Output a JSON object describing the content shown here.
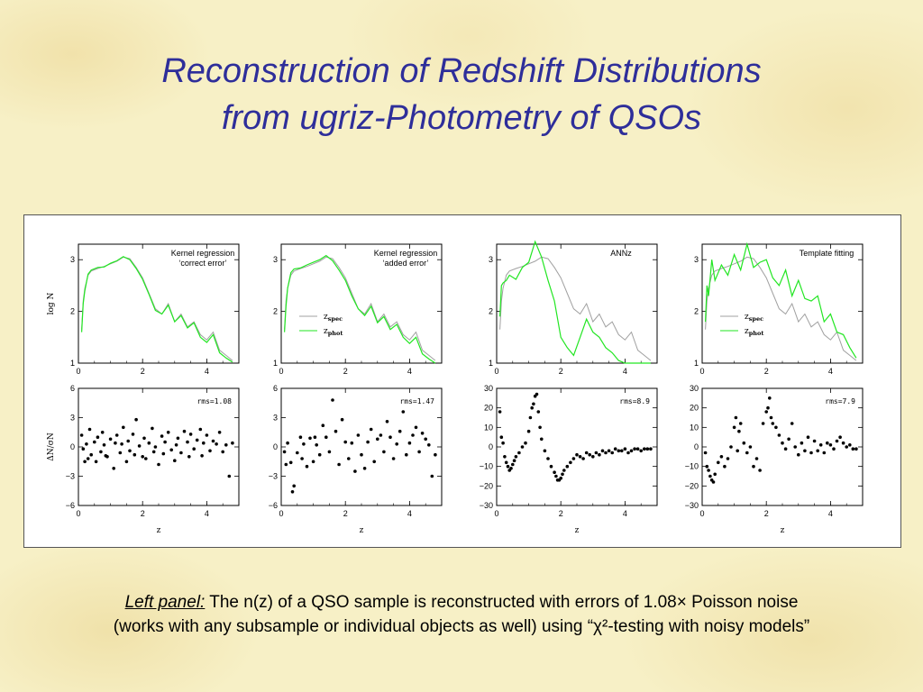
{
  "title_line1": "Reconstruction of Redshift Distributions",
  "title_line2": "from ugriz-Photometry of QSOs",
  "caption": {
    "lead": "Left panel:",
    "line1_rest": " The n(z) of a QSO sample is reconstructed with errors of 1.08× Poisson noise",
    "line2": "(works with any subsample or individual objects as well) using “χ²-testing with noisy models”"
  },
  "colors": {
    "title": "#2e2e9a",
    "spec": "#a0a0a0",
    "phot": "#22e622",
    "points": "#000000"
  },
  "chart_data": [
    {
      "type": "line",
      "panel": "top-1",
      "label": "Kernel regression ‘correct error’",
      "xlim": [
        0,
        5
      ],
      "ylim": [
        1,
        3.3
      ],
      "ylabel": "log  N",
      "xticks": [
        0,
        2,
        4
      ],
      "yticks": [
        1,
        2,
        3
      ],
      "x": [
        0.1,
        0.15,
        0.2,
        0.3,
        0.4,
        0.6,
        0.8,
        1.0,
        1.2,
        1.4,
        1.6,
        1.8,
        2.0,
        2.2,
        2.4,
        2.6,
        2.8,
        3.0,
        3.2,
        3.4,
        3.6,
        3.8,
        4.0,
        4.2,
        4.4,
        4.6,
        4.8
      ],
      "series": [
        {
          "name": "z_spec",
          "values": [
            1.65,
            2.2,
            2.45,
            2.7,
            2.78,
            2.83,
            2.87,
            2.92,
            2.97,
            3.05,
            3.02,
            2.85,
            2.65,
            2.35,
            2.05,
            1.95,
            2.15,
            1.8,
            1.95,
            1.7,
            1.8,
            1.55,
            1.45,
            1.6,
            1.25,
            1.15,
            1.05
          ]
        },
        {
          "name": "z_phot",
          "values": [
            1.6,
            2.15,
            2.4,
            2.72,
            2.8,
            2.85,
            2.86,
            2.93,
            2.98,
            3.06,
            3.0,
            2.83,
            2.62,
            2.33,
            2.02,
            1.95,
            2.12,
            1.8,
            1.92,
            1.68,
            1.78,
            1.5,
            1.4,
            1.55,
            1.2,
            1.1,
            1.02
          ]
        }
      ]
    },
    {
      "type": "line",
      "panel": "top-2",
      "label": "Kernel regression ‘added error’",
      "legend": [
        "z_spec",
        "z_phot"
      ],
      "xlim": [
        0,
        5
      ],
      "ylim": [
        1,
        3.3
      ],
      "xticks": [
        0,
        2,
        4
      ],
      "yticks": [
        1,
        2,
        3
      ],
      "x": [
        0.1,
        0.15,
        0.2,
        0.3,
        0.4,
        0.6,
        0.8,
        1.0,
        1.2,
        1.4,
        1.6,
        1.8,
        2.0,
        2.2,
        2.4,
        2.6,
        2.8,
        3.0,
        3.2,
        3.4,
        3.6,
        3.8,
        4.0,
        4.2,
        4.4,
        4.6,
        4.8
      ],
      "series": [
        {
          "name": "z_spec",
          "values": [
            1.65,
            2.2,
            2.45,
            2.7,
            2.78,
            2.83,
            2.87,
            2.92,
            2.97,
            3.05,
            3.02,
            2.85,
            2.65,
            2.35,
            2.05,
            1.95,
            2.15,
            1.8,
            1.95,
            1.7,
            1.8,
            1.55,
            1.45,
            1.6,
            1.25,
            1.15,
            1.05
          ]
        },
        {
          "name": "z_phot",
          "values": [
            1.6,
            2.1,
            2.45,
            2.75,
            2.82,
            2.84,
            2.9,
            2.95,
            3.0,
            3.08,
            2.98,
            2.8,
            2.6,
            2.3,
            2.05,
            1.92,
            2.1,
            1.78,
            1.9,
            1.65,
            1.75,
            1.5,
            1.38,
            1.5,
            1.18,
            1.08,
            1.0
          ]
        }
      ]
    },
    {
      "type": "line",
      "panel": "top-3",
      "label": "ANNz",
      "xlim": [
        0,
        5
      ],
      "ylim": [
        1,
        3.3
      ],
      "xticks": [
        0,
        2,
        4
      ],
      "yticks": [
        1,
        2,
        3
      ],
      "x": [
        0.1,
        0.15,
        0.2,
        0.3,
        0.4,
        0.6,
        0.8,
        1.0,
        1.2,
        1.4,
        1.6,
        1.8,
        2.0,
        2.2,
        2.4,
        2.6,
        2.8,
        3.0,
        3.2,
        3.4,
        3.6,
        3.8,
        4.0,
        4.2,
        4.4,
        4.6,
        4.8
      ],
      "series": [
        {
          "name": "z_spec",
          "values": [
            1.65,
            2.2,
            2.45,
            2.7,
            2.78,
            2.83,
            2.87,
            2.92,
            2.97,
            3.05,
            3.02,
            2.85,
            2.65,
            2.35,
            2.05,
            1.95,
            2.15,
            1.8,
            1.95,
            1.7,
            1.8,
            1.55,
            1.45,
            1.6,
            1.25,
            1.15,
            1.05
          ]
        },
        {
          "name": "z_phot",
          "values": [
            1.9,
            2.5,
            2.55,
            2.6,
            2.7,
            2.62,
            2.85,
            2.95,
            3.35,
            3.05,
            2.6,
            2.2,
            1.5,
            1.3,
            1.15,
            1.5,
            1.85,
            1.6,
            1.5,
            1.3,
            1.2,
            1.05,
            1.0,
            1.0,
            1.0,
            1.0,
            1.0
          ]
        }
      ]
    },
    {
      "type": "line",
      "panel": "top-4",
      "label": "Template fitting",
      "legend": [
        "z_spec",
        "z_phot"
      ],
      "xlim": [
        0,
        5
      ],
      "ylim": [
        1,
        3.3
      ],
      "xticks": [
        0,
        2,
        4
      ],
      "yticks": [
        1,
        2,
        3
      ],
      "x": [
        0.1,
        0.15,
        0.2,
        0.3,
        0.4,
        0.6,
        0.8,
        1.0,
        1.2,
        1.4,
        1.6,
        1.8,
        2.0,
        2.2,
        2.4,
        2.6,
        2.8,
        3.0,
        3.2,
        3.4,
        3.6,
        3.8,
        4.0,
        4.2,
        4.4,
        4.6,
        4.8
      ],
      "series": [
        {
          "name": "z_spec",
          "values": [
            1.65,
            2.2,
            2.45,
            2.7,
            2.78,
            2.83,
            2.87,
            2.92,
            2.97,
            3.05,
            3.02,
            2.85,
            2.65,
            2.35,
            2.05,
            1.95,
            2.15,
            1.8,
            1.95,
            1.7,
            1.8,
            1.55,
            1.45,
            1.6,
            1.25,
            1.15,
            1.05
          ]
        },
        {
          "name": "z_phot",
          "values": [
            1.8,
            2.5,
            2.3,
            3.0,
            2.6,
            2.9,
            2.7,
            3.1,
            2.8,
            3.3,
            2.85,
            2.95,
            3.0,
            2.65,
            2.5,
            2.8,
            2.3,
            2.6,
            2.25,
            2.2,
            2.3,
            1.8,
            1.95,
            1.6,
            1.55,
            1.3,
            1.1
          ]
        }
      ]
    },
    {
      "type": "scatter",
      "panel": "bottom-1",
      "annotation": "rms=1.08",
      "xlim": [
        0,
        5
      ],
      "ylim": [
        -6,
        6
      ],
      "xlabel": "z",
      "ylabel": "ΔN/σN",
      "xticks": [
        0,
        2,
        4
      ],
      "yticks": [
        -6,
        -3,
        0,
        3,
        6
      ],
      "x": [
        0.1,
        0.15,
        0.2,
        0.25,
        0.3,
        0.35,
        0.4,
        0.5,
        0.55,
        0.6,
        0.7,
        0.75,
        0.8,
        0.85,
        0.9,
        1.0,
        1.1,
        1.15,
        1.2,
        1.3,
        1.35,
        1.4,
        1.5,
        1.55,
        1.6,
        1.7,
        1.75,
        1.8,
        1.9,
        2.0,
        2.05,
        2.1,
        2.2,
        2.3,
        2.35,
        2.4,
        2.5,
        2.6,
        2.65,
        2.7,
        2.8,
        2.9,
        3.0,
        3.05,
        3.1,
        3.2,
        3.3,
        3.4,
        3.45,
        3.5,
        3.6,
        3.7,
        3.8,
        3.85,
        3.9,
        4.0,
        4.1,
        4.2,
        4.3,
        4.4,
        4.5,
        4.6,
        4.7,
        4.8
      ],
      "values": [
        1.2,
        -0.2,
        -1.5,
        0.3,
        -1.2,
        1.8,
        -0.8,
        0.5,
        -1.5,
        1.0,
        -0.5,
        1.5,
        0.2,
        -0.9,
        -1.0,
        0.8,
        -2.2,
        0.4,
        1.2,
        -0.6,
        0.3,
        2.0,
        -1.5,
        0.6,
        -0.4,
        1.3,
        -0.8,
        2.8,
        0.1,
        -1.0,
        0.9,
        -1.2,
        0.4,
        1.9,
        -0.5,
        0.0,
        -1.8,
        1.1,
        -0.7,
        0.5,
        1.5,
        -0.3,
        -1.4,
        0.2,
        0.9,
        -0.6,
        1.6,
        0.5,
        -1.0,
        1.3,
        -0.2,
        0.7,
        1.8,
        -0.9,
        0.4,
        1.2,
        -0.4,
        0.6,
        0.3,
        1.5,
        -0.5,
        0.2,
        -3.0,
        0.4
      ]
    },
    {
      "type": "scatter",
      "panel": "bottom-2",
      "annotation": "rms=1.47",
      "xlim": [
        0,
        5
      ],
      "ylim": [
        -6,
        6
      ],
      "xlabel": "z",
      "xticks": [
        0,
        2,
        4
      ],
      "yticks": [
        -6,
        -3,
        0,
        3,
        6
      ],
      "x": [
        0.1,
        0.15,
        0.2,
        0.3,
        0.35,
        0.4,
        0.5,
        0.6,
        0.65,
        0.7,
        0.8,
        0.9,
        1.0,
        1.05,
        1.1,
        1.2,
        1.3,
        1.4,
        1.5,
        1.6,
        1.7,
        1.8,
        1.9,
        2.0,
        2.1,
        2.2,
        2.3,
        2.4,
        2.5,
        2.6,
        2.7,
        2.8,
        2.9,
        3.0,
        3.1,
        3.2,
        3.3,
        3.4,
        3.5,
        3.6,
        3.7,
        3.8,
        3.9,
        4.0,
        4.1,
        4.2,
        4.3,
        4.4,
        4.5,
        4.6,
        4.7,
        4.8
      ],
      "values": [
        -0.5,
        -1.8,
        0.4,
        -1.6,
        -4.6,
        -4.0,
        -0.6,
        1.0,
        -1.2,
        0.3,
        -2.0,
        0.9,
        -1.5,
        1.0,
        0.2,
        -0.8,
        2.2,
        1.0,
        -0.5,
        4.8,
        1.6,
        -1.8,
        2.8,
        0.5,
        -1.2,
        0.4,
        -2.5,
        1.2,
        -0.8,
        -2.2,
        0.5,
        1.8,
        -1.5,
        0.8,
        1.2,
        -0.5,
        2.6,
        1.0,
        -1.2,
        0.3,
        1.6,
        3.6,
        -0.8,
        0.4,
        1.2,
        2.0,
        -0.5,
        1.4,
        0.8,
        0.2,
        -3.0,
        -0.8
      ]
    },
    {
      "type": "scatter",
      "panel": "bottom-3",
      "annotation": "rms=8.9",
      "xlim": [
        0,
        5
      ],
      "ylim": [
        -30,
        30
      ],
      "xlabel": "z",
      "xticks": [
        0,
        2,
        4
      ],
      "yticks": [
        -30,
        -20,
        -10,
        0,
        10,
        20,
        30
      ],
      "x": [
        0.1,
        0.15,
        0.2,
        0.25,
        0.3,
        0.35,
        0.4,
        0.45,
        0.5,
        0.55,
        0.6,
        0.7,
        0.8,
        0.9,
        1.0,
        1.05,
        1.1,
        1.15,
        1.2,
        1.25,
        1.3,
        1.35,
        1.4,
        1.5,
        1.6,
        1.7,
        1.8,
        1.85,
        1.9,
        1.95,
        2.0,
        2.05,
        2.1,
        2.2,
        2.3,
        2.4,
        2.5,
        2.6,
        2.7,
        2.8,
        2.9,
        3.0,
        3.1,
        3.2,
        3.3,
        3.4,
        3.5,
        3.6,
        3.7,
        3.8,
        3.9,
        4.0,
        4.1,
        4.2,
        4.3,
        4.4,
        4.5,
        4.6,
        4.7,
        4.8
      ],
      "values": [
        18,
        5,
        2,
        -5,
        -8,
        -10,
        -12,
        -11,
        -9,
        -7,
        -5,
        -3,
        0,
        2,
        8,
        15,
        20,
        22,
        26,
        27,
        18,
        10,
        4,
        -2,
        -6,
        -10,
        -13,
        -15,
        -17,
        -17,
        -16,
        -14,
        -12,
        -10,
        -8,
        -6,
        -4,
        -5,
        -6,
        -3,
        -4,
        -5,
        -3,
        -4,
        -2,
        -3,
        -2,
        -3,
        -1,
        -2,
        -2,
        -1,
        -3,
        -2,
        -1,
        -1,
        -2,
        -1,
        -1,
        -1
      ]
    },
    {
      "type": "scatter",
      "panel": "bottom-4",
      "annotation": "rms=7.9",
      "xlim": [
        0,
        5
      ],
      "ylim": [
        -30,
        30
      ],
      "xlabel": "z",
      "xticks": [
        0,
        2,
        4
      ],
      "yticks": [
        -30,
        -20,
        -10,
        0,
        10,
        20,
        30
      ],
      "x": [
        0.1,
        0.15,
        0.2,
        0.25,
        0.3,
        0.35,
        0.4,
        0.5,
        0.6,
        0.7,
        0.8,
        0.9,
        1.0,
        1.05,
        1.1,
        1.15,
        1.2,
        1.3,
        1.4,
        1.5,
        1.6,
        1.7,
        1.8,
        1.9,
        2.0,
        2.05,
        2.1,
        2.15,
        2.2,
        2.3,
        2.4,
        2.5,
        2.6,
        2.7,
        2.8,
        2.9,
        3.0,
        3.1,
        3.2,
        3.3,
        3.4,
        3.5,
        3.6,
        3.7,
        3.8,
        3.9,
        4.0,
        4.1,
        4.2,
        4.3,
        4.4,
        4.5,
        4.6,
        4.7,
        4.8
      ],
      "values": [
        -3,
        -10,
        -12,
        -15,
        -17,
        -18,
        -14,
        -8,
        -5,
        -10,
        -6,
        0,
        10,
        15,
        -2,
        8,
        12,
        2,
        -3,
        0,
        -10,
        -6,
        -12,
        12,
        18,
        20,
        25,
        15,
        12,
        10,
        6,
        2,
        -1,
        4,
        12,
        0,
        -4,
        2,
        -2,
        5,
        -3,
        3,
        -2,
        1,
        -3,
        2,
        1,
        -1,
        3,
        5,
        2,
        0,
        1,
        -1,
        -1
      ]
    }
  ]
}
